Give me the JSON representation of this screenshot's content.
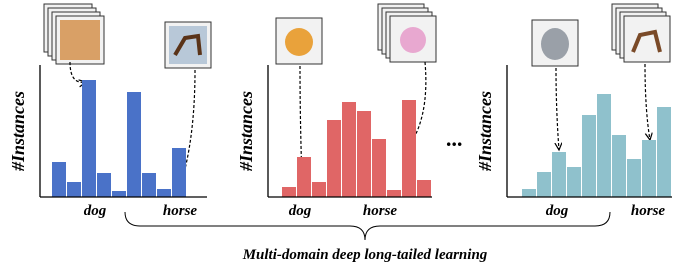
{
  "ylabel": "#Instances",
  "panels": [
    {
      "color": "#4a72c8",
      "values": [
        35,
        15,
        117,
        24,
        6,
        105,
        24,
        8,
        49
      ],
      "labels": [
        "dog",
        "horse"
      ]
    },
    {
      "color": "#e06666",
      "values": [
        10,
        40,
        15,
        77,
        95,
        86,
        58,
        7,
        97,
        17
      ],
      "labels": [
        "dog",
        "horse"
      ]
    },
    {
      "color": "#8fc1cc",
      "values": [
        8,
        25,
        45,
        30,
        82,
        103,
        62,
        38,
        57,
        90
      ],
      "labels": [
        "dog",
        "horse"
      ]
    }
  ],
  "ellipsis": "...",
  "caption": "Multi-domain deep long-tailed learning"
}
